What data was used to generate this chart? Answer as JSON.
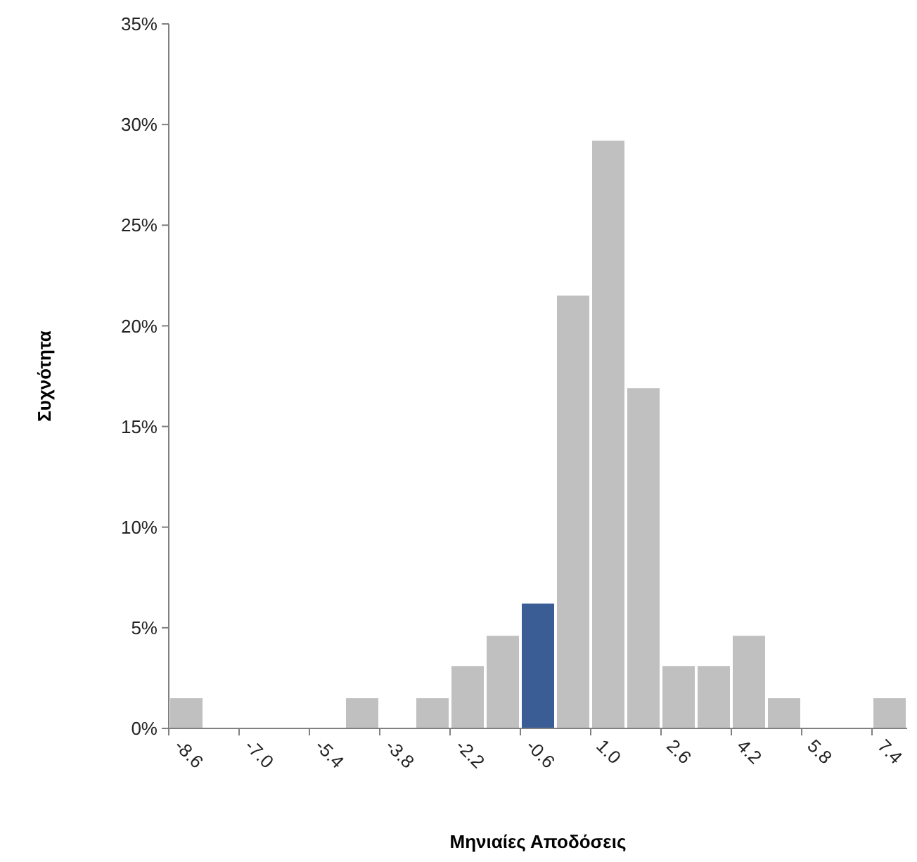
{
  "chart_data": {
    "type": "bar",
    "xlabel": "Μηνιαίες Αποδόσεις",
    "ylabel": "Συχνότητα",
    "categories": [
      "-8.6",
      null,
      "-7.0",
      null,
      "-5.4",
      null,
      "-3.8",
      null,
      "-2.2",
      null,
      "-0.6",
      null,
      "1.0",
      null,
      "2.6",
      null,
      "4.2",
      null,
      "5.8",
      null,
      "7.4"
    ],
    "values": [
      1.5,
      0,
      0,
      0,
      0,
      1.5,
      0,
      1.5,
      3.1,
      4.6,
      6.2,
      21.5,
      29.2,
      16.9,
      3.1,
      3.1,
      4.6,
      1.5,
      0,
      0,
      1.5
    ],
    "colors": [
      "#c0c0c0",
      "#c0c0c0",
      "#c0c0c0",
      "#c0c0c0",
      "#c0c0c0",
      "#c0c0c0",
      "#c0c0c0",
      "#c0c0c0",
      "#c0c0c0",
      "#c0c0c0",
      "#3a5d96",
      "#c0c0c0",
      "#c0c0c0",
      "#c0c0c0",
      "#c0c0c0",
      "#c0c0c0",
      "#c0c0c0",
      "#c0c0c0",
      "#c0c0c0",
      "#c0c0c0",
      "#c0c0c0"
    ],
    "ylim": [
      0,
      35
    ],
    "yticks": [
      {
        "value": 0,
        "label": "0%"
      },
      {
        "value": 5,
        "label": "5%"
      },
      {
        "value": 10,
        "label": "10%"
      },
      {
        "value": 15,
        "label": "15%"
      },
      {
        "value": 20,
        "label": "20%"
      },
      {
        "value": 25,
        "label": "25%"
      },
      {
        "value": 30,
        "label": "30%"
      },
      {
        "value": 35,
        "label": "35%"
      }
    ],
    "grid": false
  }
}
